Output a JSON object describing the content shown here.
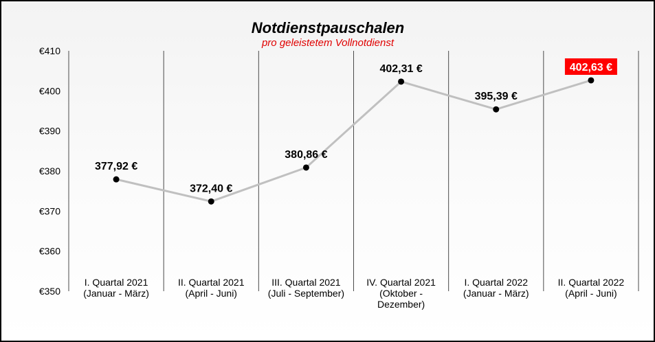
{
  "chart_data": {
    "type": "line",
    "title": "Notdienstpauschalen",
    "subtitle": "pro geleistetem Vollnotdienst",
    "categories": [
      [
        "I. Quartal 2021",
        "(Januar - März)"
      ],
      [
        "II. Quartal 2021",
        "(April - Juni)"
      ],
      [
        "III. Quartal 2021",
        "(Juli - September)"
      ],
      [
        "IV. Quartal 2021",
        "(Oktober -",
        "Dezember)"
      ],
      [
        "I. Quartal 2022",
        "(Januar - März)"
      ],
      [
        "II. Quartal 2022",
        "(April - Juni)"
      ]
    ],
    "values": [
      377.92,
      372.4,
      380.86,
      402.31,
      395.39,
      402.63
    ],
    "data_labels": [
      "377,92 €",
      "372,40 €",
      "380,86 €",
      "402,31 €",
      "395,39 €",
      "402,63 €"
    ],
    "highlight_index": 5,
    "y_ticks": [
      350,
      360,
      370,
      380,
      390,
      400,
      410
    ],
    "y_tick_labels": [
      "€350",
      "€360",
      "€370",
      "€380",
      "€390",
      "€400",
      "€410"
    ],
    "ylim": [
      350,
      410
    ],
    "grid": "vertical separators between categories",
    "colors": {
      "line": "#c0c0c0",
      "marker": "#000000",
      "subtitle": "#e00000",
      "highlight_bg": "#ff0000",
      "highlight_text": "#ffffff"
    }
  }
}
